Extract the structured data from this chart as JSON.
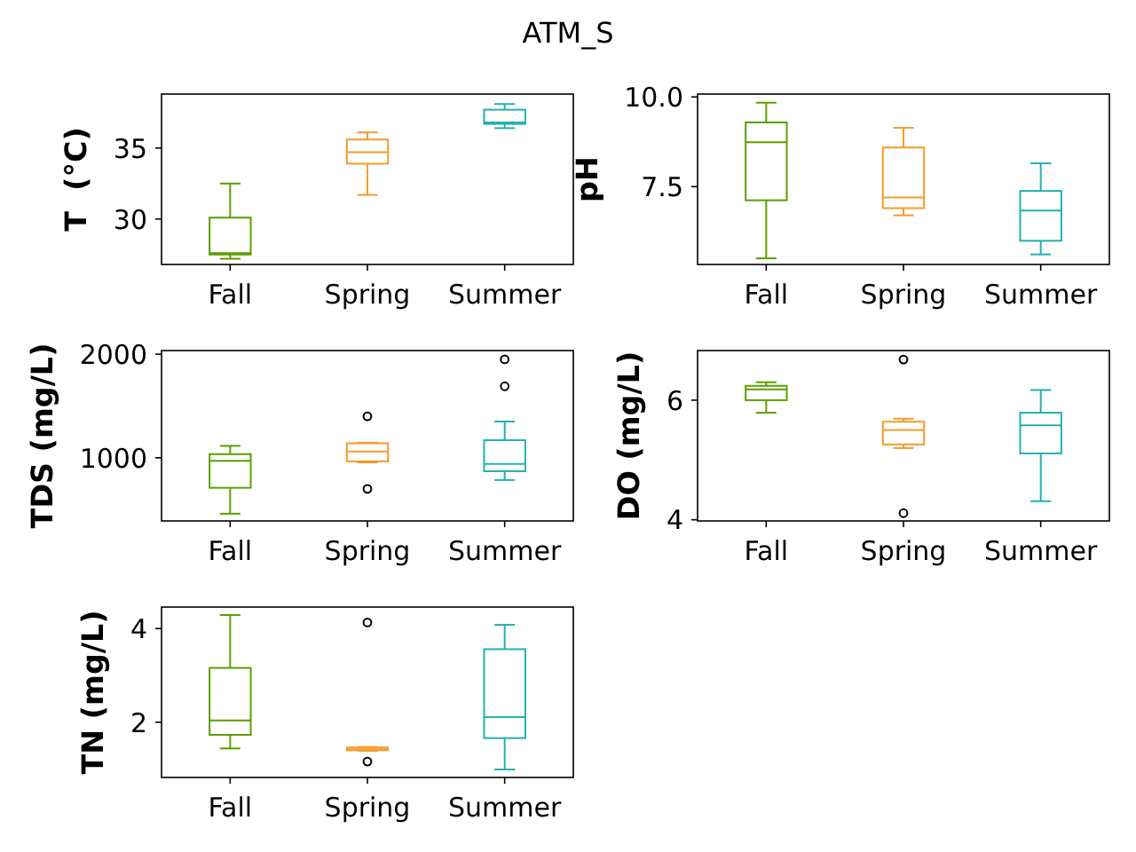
{
  "chart_data": [
    {
      "type": "box",
      "title": "ATM_S",
      "ylabel": "T  (°C)",
      "categories": [
        "Fall",
        "Spring",
        "Summer"
      ],
      "colors": [
        "#5c9e00",
        "#f39c2c",
        "#22b0b0"
      ],
      "ylim": [
        26.8,
        38.8
      ],
      "yticks": [
        30,
        35
      ],
      "boxes": [
        {
          "low": 27.2,
          "q1": 27.5,
          "median": 27.6,
          "q3": 30.1,
          "high": 32.5
        },
        {
          "low": 31.7,
          "q1": 33.9,
          "median": 34.7,
          "q3": 35.6,
          "high": 36.1
        },
        {
          "low": 36.4,
          "q1": 36.7,
          "median": 36.8,
          "q3": 37.7,
          "high": 38.1
        }
      ]
    },
    {
      "type": "box",
      "ylabel": "pH",
      "categories": [
        "Fall",
        "Spring",
        "Summer"
      ],
      "colors": [
        "#5c9e00",
        "#f39c2c",
        "#22b0b0"
      ],
      "ylim": [
        5.33,
        10.08
      ],
      "yticks": [
        {
          "value": 10,
          "label": "10.0"
        },
        7.5
      ],
      "boxes": [
        {
          "low": 5.5,
          "q1": 7.12,
          "median": 8.74,
          "q3": 9.29,
          "high": 9.84
        },
        {
          "low": 6.7,
          "q1": 6.9,
          "median": 7.2,
          "q3": 8.59,
          "high": 9.14
        },
        {
          "low": 5.61,
          "q1": 5.99,
          "median": 6.83,
          "q3": 7.38,
          "high": 8.15
        }
      ]
    },
    {
      "type": "box",
      "ylabel": "TDS (mg/L)",
      "categories": [
        "Fall",
        "Spring",
        "Summer"
      ],
      "colors": [
        "#5c9e00",
        "#f39c2c",
        "#22b0b0"
      ],
      "ylim": [
        390,
        2035
      ],
      "yticks": [
        1000,
        2000
      ],
      "boxes": [
        {
          "low": 460,
          "q1": 710,
          "median": 970,
          "q3": 1035,
          "high": 1115
        },
        {
          "low": 955,
          "q1": 965,
          "median": 1060,
          "q3": 1140,
          "high": 1145,
          "outliers": [
            700,
            1400
          ]
        },
        {
          "low": 785,
          "q1": 870,
          "median": 940,
          "q3": 1170,
          "high": 1350,
          "outliers": [
            1690,
            1950
          ]
        }
      ]
    },
    {
      "type": "box",
      "ylabel": "DO (mg/L)",
      "categories": [
        "Fall",
        "Spring",
        "Summer"
      ],
      "colors": [
        "#5c9e00",
        "#f39c2c",
        "#22b0b0"
      ],
      "ylim": [
        3.98,
        6.83
      ],
      "yticks": [
        4,
        6
      ],
      "boxes": [
        {
          "low": 5.79,
          "q1": 6.0,
          "median": 6.18,
          "q3": 6.24,
          "high": 6.3
        },
        {
          "low": 5.2,
          "q1": 5.26,
          "median": 5.5,
          "q3": 5.64,
          "high": 5.69,
          "outliers": [
            4.11,
            6.68
          ]
        },
        {
          "low": 4.31,
          "q1": 5.11,
          "median": 5.58,
          "q3": 5.79,
          "high": 6.17
        }
      ]
    },
    {
      "type": "box",
      "ylabel": "TN (mg/L)",
      "categories": [
        "Fall",
        "Spring",
        "Summer"
      ],
      "colors": [
        "#5c9e00",
        "#f39c2c",
        "#22b0b0"
      ],
      "ylim": [
        0.82,
        4.46
      ],
      "yticks": [
        2,
        4
      ],
      "boxes": [
        {
          "low": 1.44,
          "q1": 1.73,
          "median": 2.04,
          "q3": 3.16,
          "high": 4.29
        },
        {
          "low": 1.39,
          "q1": 1.4,
          "median": 1.42,
          "q3": 1.46,
          "high": 1.47,
          "outliers": [
            1.16,
            4.13
          ]
        },
        {
          "low": 0.99,
          "q1": 1.66,
          "median": 2.11,
          "q3": 3.56,
          "high": 4.08
        }
      ]
    }
  ]
}
